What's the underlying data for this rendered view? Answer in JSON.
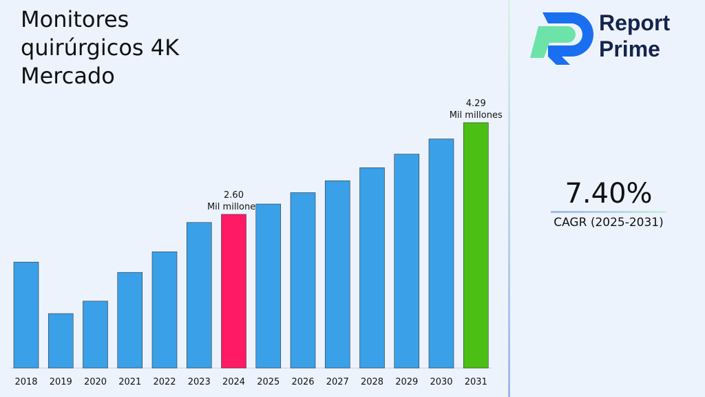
{
  "title": "Monitores quirúrgicos 4K Mercado",
  "brand": {
    "line1": "Report",
    "line2": "Prime"
  },
  "cagr": {
    "value": "7.40%",
    "label": "CAGR (2025-2031)"
  },
  "chart_data": {
    "type": "bar",
    "categories": [
      "2018",
      "2019",
      "2020",
      "2021",
      "2022",
      "2023",
      "2024",
      "2025",
      "2026",
      "2027",
      "2028",
      "2029",
      "2030",
      "2031"
    ],
    "values": [
      1.72,
      0.77,
      1.0,
      1.53,
      1.91,
      2.45,
      2.6,
      2.79,
      3.0,
      3.22,
      3.46,
      3.71,
      3.99,
      4.29
    ],
    "colors": {
      "default": "#3aa0e8",
      "highlight_2024": "#ff1a66",
      "highlight_2031": "#4cbf14"
    },
    "data_labels": [
      {
        "category": "2024",
        "value": "2.60",
        "unit": "Mil millones"
      },
      {
        "category": "2031",
        "value": "4.29",
        "unit": "Mil millones"
      }
    ]
  }
}
